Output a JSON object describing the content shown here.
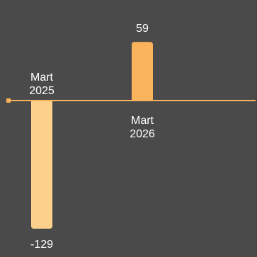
{
  "chart_data": {
    "type": "bar",
    "categories": [
      "Mart 2025",
      "Mart 2026"
    ],
    "category_lines": [
      [
        "Mart",
        "2025"
      ],
      [
        "Mart",
        "2026"
      ]
    ],
    "values": [
      -129,
      59
    ],
    "value_labels": [
      "-129",
      "59"
    ],
    "colors": [
      "#fdd08c",
      "#fbb35c"
    ],
    "axis_color": "#fbb35c",
    "ylim": [
      -129,
      59
    ],
    "grid": false,
    "legend": "none"
  }
}
